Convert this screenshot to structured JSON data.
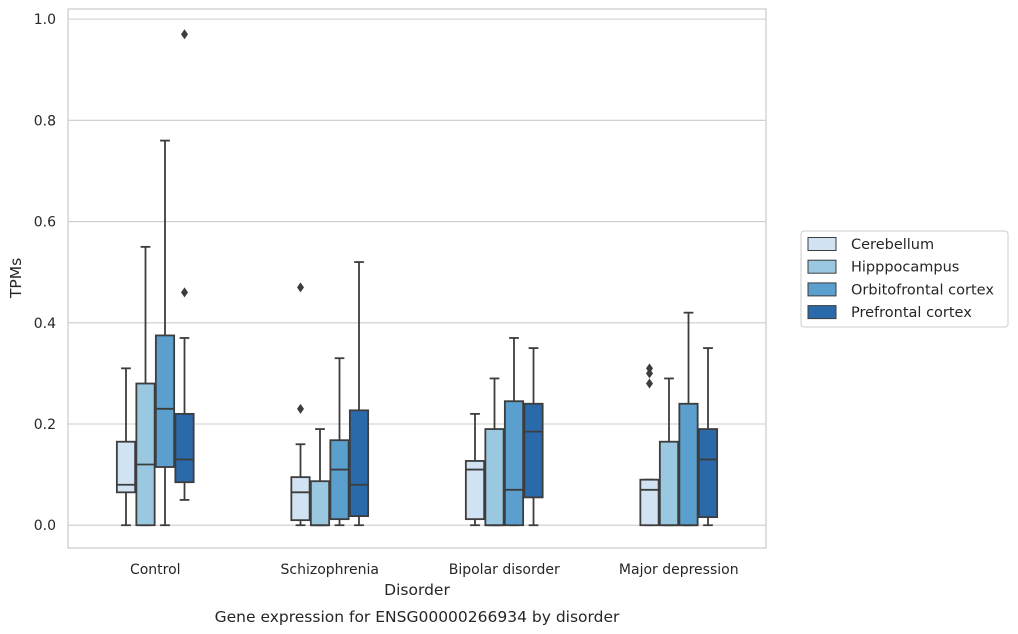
{
  "chart_data": {
    "type": "box",
    "xlabel": "Disorder",
    "ylabel": "TPMs",
    "caption": "Gene expression for ENSG00000266934 by disorder",
    "categories": [
      "Control",
      "Schizophrenia",
      "Bipolar disorder",
      "Major depression"
    ],
    "ylim": [
      -0.045,
      1.02
    ],
    "yticks": [
      "0.0",
      "0.2",
      "0.4",
      "0.6",
      "0.8",
      "1.0"
    ],
    "grid": true,
    "legend_position": "right",
    "series": [
      {
        "name": "Cerebellum",
        "color": "#d1e2f2",
        "boxes": [
          {
            "min": 0.0,
            "q1": 0.065,
            "median": 0.08,
            "q3": 0.165,
            "max": 0.31,
            "outliers": []
          },
          {
            "min": 0.0,
            "q1": 0.01,
            "median": 0.065,
            "q3": 0.095,
            "max": 0.16,
            "outliers": [
              0.23,
              0.47
            ]
          },
          {
            "min": 0.0,
            "q1": 0.012,
            "median": 0.11,
            "q3": 0.127,
            "max": 0.22,
            "outliers": []
          },
          {
            "min": 0.0,
            "q1": 0.0,
            "median": 0.07,
            "q3": 0.09,
            "max": 0.09,
            "outliers": [
              0.28,
              0.3,
              0.31
            ]
          }
        ]
      },
      {
        "name": "Hipppocampus",
        "color": "#9ac8e0",
        "boxes": [
          {
            "min": 0.0,
            "q1": 0.0,
            "median": 0.12,
            "q3": 0.28,
            "max": 0.55,
            "outliers": []
          },
          {
            "min": 0.0,
            "q1": 0.0,
            "median": 0.0,
            "q3": 0.087,
            "max": 0.19,
            "outliers": []
          },
          {
            "min": 0.0,
            "q1": 0.0,
            "median": 0.0,
            "q3": 0.19,
            "max": 0.29,
            "outliers": []
          },
          {
            "min": 0.0,
            "q1": 0.0,
            "median": 0.0,
            "q3": 0.165,
            "max": 0.29,
            "outliers": []
          }
        ]
      },
      {
        "name": "Orbitofrontal cortex",
        "color": "#5a9fcd",
        "boxes": [
          {
            "min": 0.0,
            "q1": 0.115,
            "median": 0.23,
            "q3": 0.375,
            "max": 0.76,
            "outliers": []
          },
          {
            "min": 0.0,
            "q1": 0.012,
            "median": 0.11,
            "q3": 0.168,
            "max": 0.33,
            "outliers": []
          },
          {
            "min": 0.0,
            "q1": 0.0,
            "median": 0.07,
            "q3": 0.245,
            "max": 0.37,
            "outliers": []
          },
          {
            "min": 0.0,
            "q1": 0.0,
            "median": 0.0,
            "q3": 0.24,
            "max": 0.42,
            "outliers": []
          }
        ]
      },
      {
        "name": "Prefrontal cortex",
        "color": "#2b6aaa",
        "boxes": [
          {
            "min": 0.05,
            "q1": 0.085,
            "median": 0.13,
            "q3": 0.22,
            "max": 0.37,
            "outliers": [
              0.46,
              0.97
            ]
          },
          {
            "min": 0.0,
            "q1": 0.018,
            "median": 0.08,
            "q3": 0.227,
            "max": 0.52,
            "outliers": []
          },
          {
            "min": 0.0,
            "q1": 0.055,
            "median": 0.185,
            "q3": 0.24,
            "max": 0.35,
            "outliers": []
          },
          {
            "min": 0.0,
            "q1": 0.016,
            "median": 0.13,
            "q3": 0.19,
            "max": 0.35,
            "outliers": []
          }
        ]
      }
    ]
  }
}
